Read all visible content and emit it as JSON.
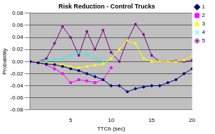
{
  "chart_data": {
    "type": "line",
    "title": "Risk Reduction - Control Trucks",
    "x_label": "TTCb (sec)",
    "y_label": "Probability",
    "x": [
      0,
      1,
      2,
      3,
      4,
      5,
      6,
      7,
      8,
      9,
      10,
      11,
      12,
      13,
      14,
      15,
      16,
      17,
      18,
      19,
      20
    ],
    "series": [
      {
        "name": "1",
        "color": "#000080",
        "marker": "diamond",
        "values": [
          0,
          -0.002,
          -0.004,
          -0.005,
          -0.008,
          -0.012,
          -0.015,
          -0.02,
          -0.025,
          -0.03,
          -0.04,
          -0.04,
          -0.05,
          -0.045,
          -0.042,
          -0.04,
          -0.04,
          -0.035,
          -0.03,
          -0.02,
          -0.012
        ]
      },
      {
        "name": "2",
        "color": "#ff00ff",
        "marker": "square",
        "values": [
          0,
          -0.002,
          -0.005,
          -0.012,
          -0.02,
          -0.035,
          -0.03,
          -0.032,
          -0.035,
          -0.03,
          -0.01,
          null,
          null,
          null,
          null,
          null,
          null,
          null,
          null,
          null,
          null
        ]
      },
      {
        "name": "3",
        "color": "#ffff00",
        "marker": "triangle",
        "values": [
          0,
          0,
          -0.002,
          -0.004,
          -0.005,
          -0.008,
          -0.01,
          -0.008,
          -0.006,
          -0.004,
          0.005,
          0.02,
          0.035,
          0.03,
          0.005,
          0,
          0,
          0,
          0,
          0.002,
          0.01
        ]
      },
      {
        "name": "4",
        "color": "#00ffff",
        "marker": "x",
        "values": [
          0,
          0,
          0.002,
          0.003,
          0.005,
          0.01,
          0.015,
          0.012,
          0.005,
          0,
          null,
          null,
          null,
          null,
          null,
          null,
          null,
          null,
          null,
          null,
          null
        ]
      },
      {
        "name": "5",
        "color": "#800080",
        "marker": "asterisk",
        "values": [
          0,
          0,
          0.005,
          0.03,
          0.058,
          0.04,
          0.01,
          0.05,
          0.02,
          0.052,
          0.015,
          0,
          0.035,
          0.062,
          0.045,
          0.01,
          0,
          0,
          0.001,
          0,
          0.002
        ]
      }
    ],
    "xlim": [
      0,
      20
    ],
    "xticks": [
      5,
      10,
      15,
      20
    ],
    "ylim": [
      -0.08,
      0.08
    ],
    "yticks": [
      -0.08,
      -0.06,
      -0.04,
      -0.02,
      {
        "value": 0,
        "label": "0.00"
      },
      0.02,
      0.04,
      0.06,
      0.08
    ],
    "grid": true,
    "legend": "right"
  }
}
